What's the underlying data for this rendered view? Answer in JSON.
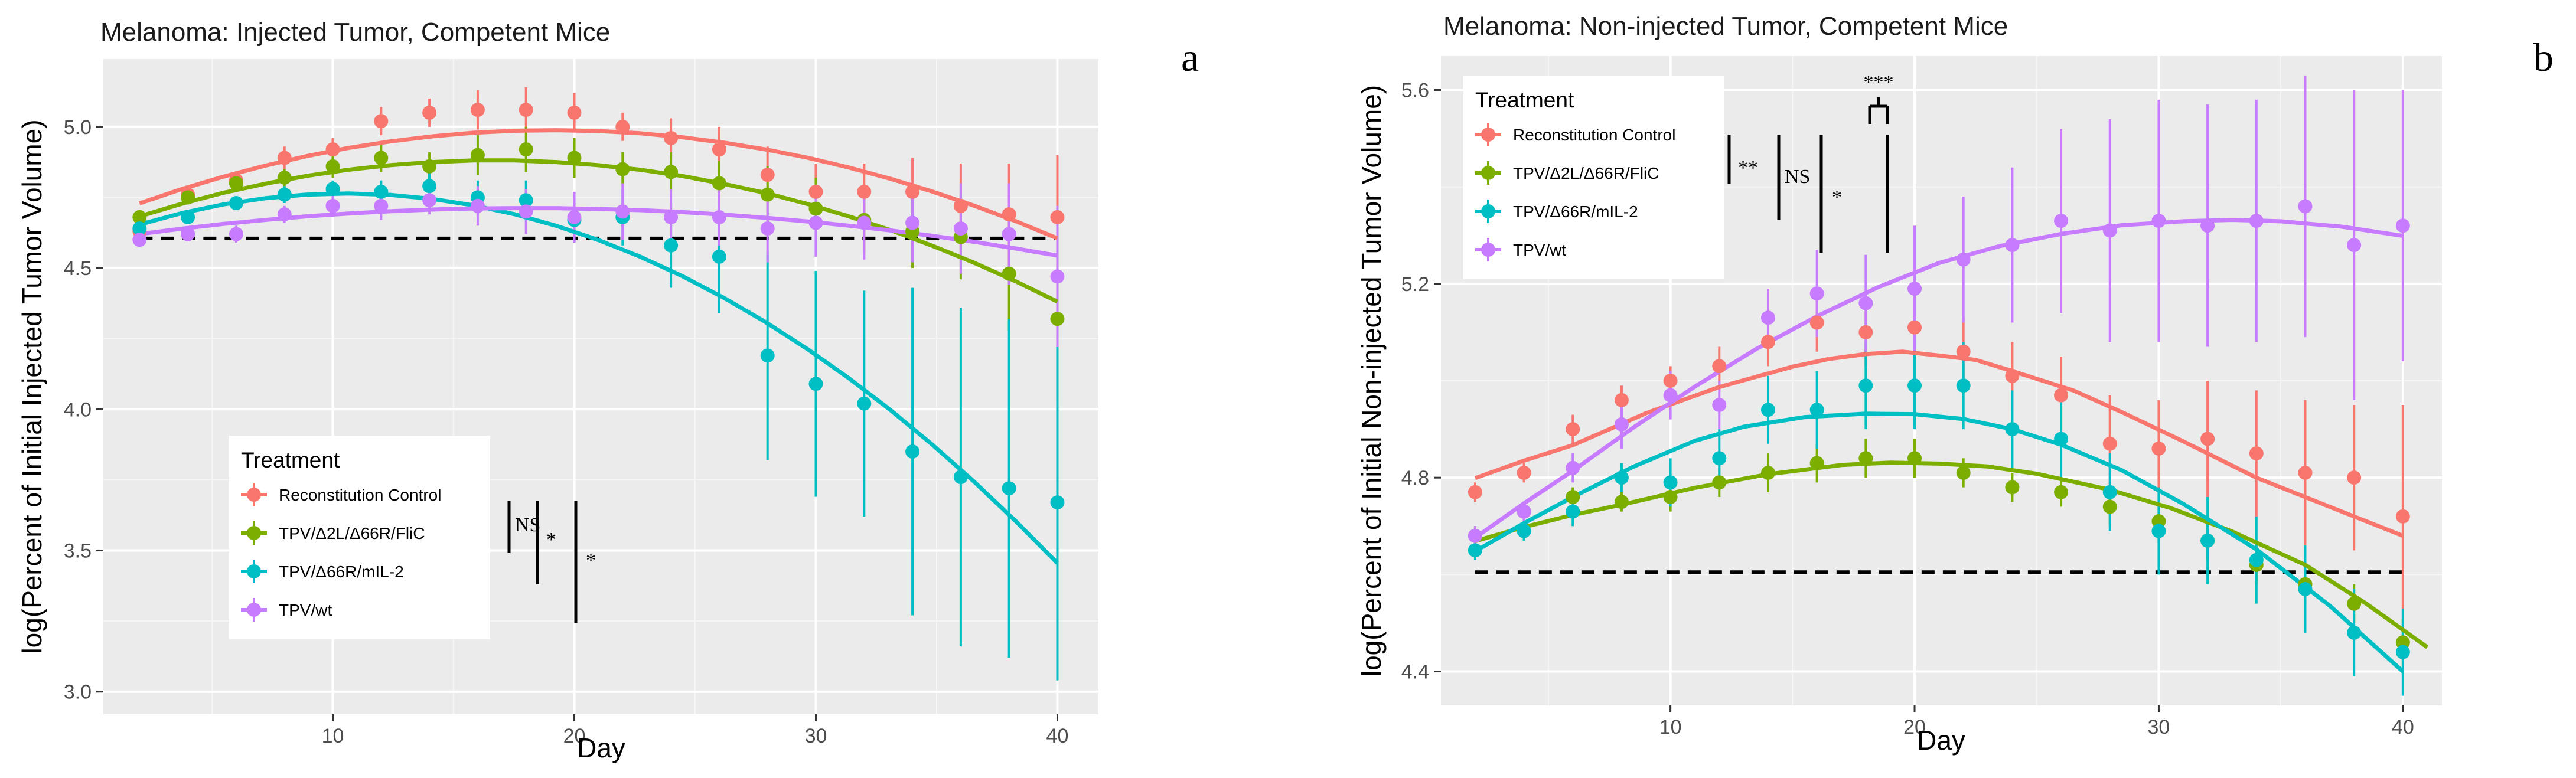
{
  "chart_data": [
    {
      "type": "scatter",
      "label": "a",
      "title": "Melanoma: Injected Tumor, Competent Mice",
      "xlabel": "Day",
      "ylabel": "log(Percent of Initial Injected Tumor Volume)",
      "xlim": [
        0.5,
        41.7
      ],
      "ylim": [
        2.92,
        5.24
      ],
      "xticks": [
        10,
        20,
        30,
        40
      ],
      "yticks": [
        3.0,
        3.5,
        4.0,
        4.5,
        5.0
      ],
      "ytick_labels": [
        "3.0",
        "3.5",
        "4.0",
        "4.5",
        "5.0"
      ],
      "xtick_labels": [
        "10",
        "20",
        "30",
        "40"
      ],
      "baseline": 4.605,
      "grid": true,
      "legend": {
        "title": "Treatment",
        "position": "bottom-left",
        "entries": [
          "Reconstitution Control",
          "TPV/Δ2L/Δ66R/FliC",
          "TPV/Δ66R/mIL-2",
          "TPV/wt"
        ]
      },
      "annotations": [
        {
          "text": "NS",
          "pair": "Reconstitution Control vs TPV/Δ2L/Δ66R/FliC"
        },
        {
          "text": "*",
          "pair": "Reconstitution Control vs TPV/Δ66R/mIL-2"
        },
        {
          "text": "*",
          "pair": "Reconstitution Control vs TPV/wt"
        }
      ],
      "series": [
        {
          "name": "Reconstitution Control",
          "color": "#F8766D",
          "x": [
            2,
            4,
            6,
            8,
            10,
            12,
            14,
            16,
            18,
            20,
            22,
            24,
            26,
            28,
            30,
            32,
            34,
            36,
            38,
            40
          ],
          "y": [
            4.63,
            4.76,
            4.81,
            4.89,
            4.92,
            5.02,
            5.05,
            5.06,
            5.06,
            5.05,
            5.0,
            4.96,
            4.92,
            4.83,
            4.77,
            4.77,
            4.77,
            4.72,
            4.69,
            4.68
          ],
          "err": [
            0.02,
            0.02,
            0.03,
            0.04,
            0.04,
            0.05,
            0.05,
            0.07,
            0.08,
            0.07,
            0.05,
            0.07,
            0.08,
            0.1,
            0.1,
            0.1,
            0.12,
            0.15,
            0.18,
            0.22
          ],
          "fit": [
            4.729,
            4.779,
            4.823,
            4.862,
            4.896,
            4.925,
            4.948,
            4.966,
            4.979,
            4.986,
            4.988,
            4.985,
            4.977,
            4.963,
            4.944,
            4.92,
            4.891,
            4.856,
            4.816,
            4.771,
            4.721,
            4.666,
            4.605
          ]
        },
        {
          "name": "TPV/Δ2L/Δ66R/FliC",
          "color": "#7CAE00",
          "x": [
            2,
            4,
            6,
            8,
            10,
            12,
            14,
            16,
            18,
            20,
            22,
            24,
            26,
            28,
            30,
            32,
            34,
            36,
            38,
            40
          ],
          "y": [
            4.68,
            4.75,
            4.8,
            4.82,
            4.86,
            4.89,
            4.86,
            4.9,
            4.92,
            4.89,
            4.85,
            4.84,
            4.8,
            4.76,
            4.71,
            4.67,
            4.63,
            4.61,
            4.48,
            4.32
          ],
          "err": [
            0.02,
            0.02,
            0.03,
            0.03,
            0.04,
            0.05,
            0.05,
            0.07,
            0.08,
            0.07,
            0.06,
            0.07,
            0.08,
            0.1,
            0.11,
            0.12,
            0.13,
            0.15,
            0.2,
            0.28
          ],
          "fit": [
            4.683,
            4.727,
            4.766,
            4.798,
            4.826,
            4.848,
            4.864,
            4.875,
            4.881,
            4.881,
            4.875,
            4.864,
            4.848,
            4.826,
            4.798,
            4.766,
            4.727,
            4.683,
            4.634,
            4.579,
            4.519,
            4.453,
            4.381
          ]
        },
        {
          "name": "TPV/Δ66R/mIL-2",
          "color": "#00BFC4",
          "x": [
            2,
            4,
            6,
            8,
            10,
            12,
            14,
            16,
            18,
            20,
            22,
            24,
            26,
            28,
            30,
            32,
            34,
            36,
            38,
            40
          ],
          "y": [
            4.64,
            4.68,
            4.73,
            4.76,
            4.78,
            4.77,
            4.79,
            4.75,
            4.74,
            4.67,
            4.68,
            4.58,
            4.54,
            4.19,
            4.09,
            4.02,
            3.85,
            3.76,
            3.72,
            3.67
          ],
          "err": [
            0.02,
            0.02,
            0.02,
            0.03,
            0.03,
            0.04,
            0.05,
            0.06,
            0.07,
            0.08,
            0.1,
            0.15,
            0.2,
            0.37,
            0.4,
            0.4,
            0.58,
            0.6,
            0.6,
            0.63
          ],
          "fit": [
            4.654,
            4.694,
            4.725,
            4.747,
            4.76,
            4.764,
            4.759,
            4.745,
            4.722,
            4.69,
            4.649,
            4.599,
            4.54,
            4.472,
            4.395,
            4.309,
            4.214,
            4.11,
            3.997,
            3.875,
            3.744,
            3.604,
            3.455
          ]
        },
        {
          "name": "TPV/wt",
          "color": "#C77CFF",
          "x": [
            2,
            4,
            6,
            8,
            10,
            12,
            14,
            16,
            18,
            20,
            22,
            24,
            26,
            28,
            30,
            32,
            34,
            36,
            38,
            40
          ],
          "y": [
            4.6,
            4.62,
            4.62,
            4.69,
            4.72,
            4.72,
            4.74,
            4.72,
            4.7,
            4.68,
            4.7,
            4.68,
            4.68,
            4.64,
            4.66,
            4.66,
            4.66,
            4.64,
            4.62,
            4.47
          ],
          "err": [
            0.02,
            0.02,
            0.03,
            0.03,
            0.04,
            0.05,
            0.05,
            0.07,
            0.08,
            0.09,
            0.1,
            0.1,
            0.1,
            0.12,
            0.12,
            0.13,
            0.14,
            0.16,
            0.18,
            0.25
          ],
          "fit": [
            4.62,
            4.639,
            4.656,
            4.67,
            4.683,
            4.693,
            4.701,
            4.707,
            4.711,
            4.712,
            4.712,
            4.709,
            4.705,
            4.698,
            4.689,
            4.678,
            4.665,
            4.65,
            4.633,
            4.614,
            4.593,
            4.569,
            4.544
          ]
        }
      ]
    },
    {
      "type": "scatter",
      "label": "b",
      "title": "Melanoma: Non-injected Tumor, Competent Mice",
      "xlabel": "Day",
      "ylabel": "log(Percent of Initial Non-injected Tumor Volume)",
      "xlim": [
        0.6,
        41.6
      ],
      "ylim": [
        4.33,
        5.67
      ],
      "xticks": [
        10,
        20,
        30,
        40
      ],
      "yticks": [
        4.4,
        4.8,
        5.2,
        5.6
      ],
      "ytick_labels": [
        "4.4",
        "4.8",
        "5.2",
        "5.6"
      ],
      "xtick_labels": [
        "10",
        "20",
        "30",
        "40"
      ],
      "baseline": 4.605,
      "grid": true,
      "legend": {
        "title": "Treatment",
        "position": "top-left",
        "entries": [
          "Reconstitution Control",
          "TPV/Δ2L/Δ66R/FliC",
          "TPV/Δ66R/mIL-2",
          "TPV/wt"
        ]
      },
      "annotations": [
        {
          "text": "**",
          "pair": "Reconstitution Control vs TPV/Δ2L/Δ66R/FliC"
        },
        {
          "text": "NS",
          "pair": "Reconstitution Control vs TPV/Δ66R/mIL-2"
        },
        {
          "text": "*",
          "pair": "Reconstitution Control vs TPV/wt"
        },
        {
          "text": "***",
          "pair": "TPV/Δ2L/Δ66R/FliC vs TPV/wt"
        }
      ],
      "series": [
        {
          "name": "Reconstitution Control",
          "color": "#F8766D",
          "x": [
            2,
            4,
            6,
            8,
            10,
            12,
            14,
            16,
            18,
            20,
            22,
            24,
            26,
            28,
            30,
            32,
            34,
            36,
            38,
            40
          ],
          "y": [
            4.77,
            4.81,
            4.9,
            4.96,
            5.0,
            5.03,
            5.08,
            5.12,
            5.1,
            5.11,
            5.06,
            5.01,
            4.97,
            4.87,
            4.86,
            4.88,
            4.85,
            4.81,
            4.8,
            4.72
          ],
          "err": [
            0.02,
            0.02,
            0.03,
            0.03,
            0.03,
            0.04,
            0.05,
            0.06,
            0.07,
            0.06,
            0.07,
            0.07,
            0.08,
            0.1,
            0.1,
            0.12,
            0.13,
            0.15,
            0.15,
            0.23
          ],
          "fit": [
            4.799,
            4.835,
            4.867,
            4.933,
            4.987,
            5.029,
            5.045,
            5.055,
            5.06,
            5.052,
            5.043,
            5.02,
            4.98,
            4.935,
            4.875,
            4.8,
            4.68
          ],
          "fit_x": [
            2,
            4,
            6,
            9,
            12,
            15,
            16.5,
            18,
            19.5,
            21,
            22.5,
            24,
            26.5,
            28.5,
            31,
            34,
            40
          ]
        },
        {
          "name": "TPV/Δ2L/Δ66R/FliC",
          "color": "#7CAE00",
          "x": [
            2,
            4,
            6,
            8,
            10,
            12,
            14,
            16,
            18,
            20,
            22,
            24,
            26,
            28,
            30,
            32,
            34,
            36,
            38,
            40
          ],
          "y": [
            4.68,
            4.73,
            4.76,
            4.75,
            4.76,
            4.79,
            4.81,
            4.83,
            4.84,
            4.84,
            4.81,
            4.78,
            4.77,
            4.74,
            4.71,
            4.67,
            4.62,
            4.58,
            4.54,
            4.46
          ],
          "err": [
            0.02,
            0.02,
            0.02,
            0.02,
            0.03,
            0.03,
            0.04,
            0.04,
            0.04,
            0.04,
            0.03,
            0.03,
            0.03,
            0.04,
            0.04,
            0.04,
            0.04,
            0.04,
            0.04,
            0.05
          ],
          "fit": [
            4.669,
            4.698,
            4.723,
            4.744,
            4.779,
            4.807,
            4.826,
            4.831,
            4.829,
            4.823,
            4.808,
            4.775,
            4.737,
            4.689,
            4.62,
            4.54,
            4.45
          ],
          "fit_x": [
            2,
            4,
            6,
            8,
            11,
            14,
            17,
            19,
            21,
            23,
            25,
            28,
            30.5,
            33,
            36,
            38.5,
            41
          ]
        },
        {
          "name": "TPV/Δ66R/mIL-2",
          "color": "#00BFC4",
          "x": [
            2,
            4,
            6,
            8,
            10,
            12,
            14,
            16,
            18,
            20,
            22,
            24,
            26,
            28,
            30,
            32,
            34,
            36,
            38,
            40
          ],
          "y": [
            4.65,
            4.69,
            4.73,
            4.8,
            4.79,
            4.84,
            4.94,
            4.94,
            4.99,
            4.99,
            4.99,
            4.9,
            4.88,
            4.77,
            4.69,
            4.67,
            4.63,
            4.57,
            4.48,
            4.44
          ],
          "err": [
            0.02,
            0.02,
            0.03,
            0.03,
            0.05,
            0.06,
            0.07,
            0.08,
            0.09,
            0.09,
            0.09,
            0.08,
            0.08,
            0.08,
            0.09,
            0.09,
            0.09,
            0.09,
            0.09,
            0.09
          ],
          "fit": [
            4.648,
            4.706,
            4.76,
            4.823,
            4.876,
            4.905,
            4.925,
            4.932,
            4.931,
            4.921,
            4.9,
            4.868,
            4.815,
            4.746,
            4.652,
            4.536,
            4.4
          ],
          "fit_x": [
            2,
            4,
            6,
            8.5,
            11,
            13,
            15.5,
            18,
            20,
            22,
            24,
            26,
            28.5,
            31,
            34,
            37,
            40
          ]
        },
        {
          "name": "TPV/wt",
          "color": "#C77CFF",
          "x": [
            2,
            4,
            6,
            8,
            10,
            12,
            14,
            16,
            18,
            20,
            22,
            24,
            26,
            28,
            30,
            32,
            34,
            36,
            38,
            40
          ],
          "y": [
            4.68,
            4.73,
            4.82,
            4.91,
            4.97,
            4.95,
            5.13,
            5.18,
            5.16,
            5.19,
            5.25,
            5.28,
            5.33,
            5.31,
            5.33,
            5.32,
            5.33,
            5.36,
            5.28,
            5.32
          ],
          "err": [
            0.02,
            0.02,
            0.03,
            0.05,
            0.05,
            0.05,
            0.06,
            0.09,
            0.1,
            0.13,
            0.13,
            0.16,
            0.19,
            0.23,
            0.25,
            0.25,
            0.25,
            0.27,
            0.32,
            0.28
          ],
          "fit": [
            4.676,
            4.747,
            4.814,
            4.904,
            4.988,
            5.065,
            5.133,
            5.193,
            5.243,
            5.278,
            5.303,
            5.321,
            5.329,
            5.332,
            5.329,
            5.318,
            5.299
          ],
          "fit_x": [
            2,
            4,
            6,
            8.5,
            11,
            13.5,
            16,
            18.5,
            21,
            23.5,
            26,
            28.5,
            31,
            33,
            35,
            37.5,
            40
          ]
        }
      ]
    }
  ]
}
